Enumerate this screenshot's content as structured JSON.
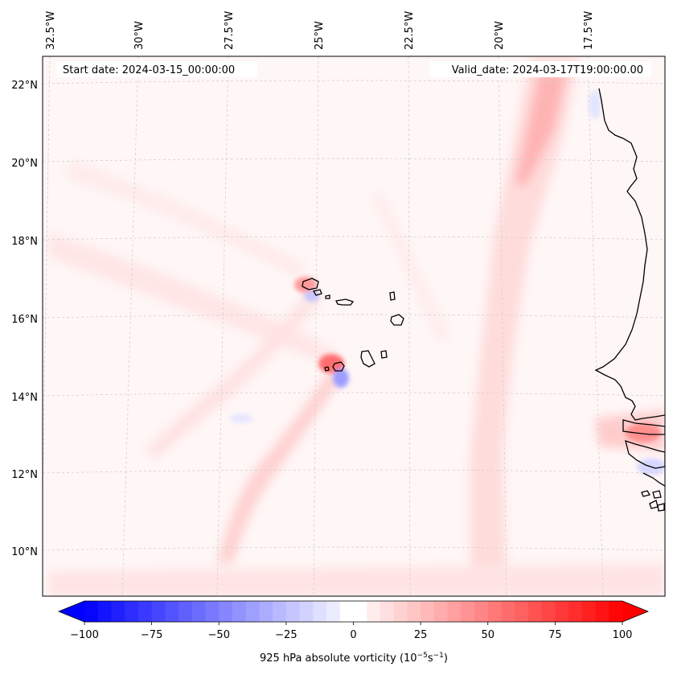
{
  "header": {
    "start_date": "Start date: 2024-03-15_00:00:00",
    "valid_date": "Valid_date: 2024-03-17T19:00:00.00"
  },
  "map": {
    "lon_labels": [
      "32.5°W",
      "30°W",
      "27.5°W",
      "25°W",
      "22.5°W",
      "20°W",
      "17.5°W"
    ],
    "lat_labels": [
      "22°N",
      "20°N",
      "18°N",
      "16°N",
      "14°N",
      "12°N",
      "10°N"
    ],
    "field": "925 hPa absolute vorticity",
    "region": "Cabo Verde and West African coast"
  },
  "colorbar": {
    "label_prefix": "925 hPa absolute vorticity (10",
    "label_exp1": "−5",
    "label_mid": "s",
    "label_exp2": "−1",
    "label_suffix": ")",
    "ticks": [
      "−100",
      "−75",
      "−50",
      "−25",
      "0",
      "25",
      "50",
      "75",
      "100"
    ],
    "min": -100,
    "max": 100,
    "colors": {
      "low": "#0000ff",
      "mid": "#ffffff",
      "high": "#ff0000"
    }
  }
}
